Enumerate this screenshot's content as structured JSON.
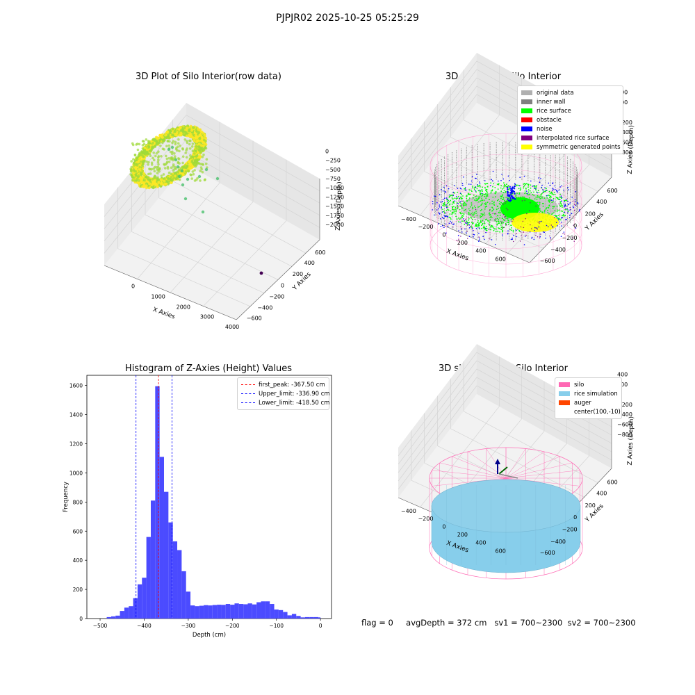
{
  "suptitle": "PJPJR02 2025-10-25 05:25:29",
  "status": {
    "flag": "flag = 0",
    "avgDepth": "avgDepth = 372 cm",
    "sv1": "sv1 = 700~2300",
    "sv2": "sv2 = 700~2300"
  },
  "chart_data": [
    {
      "type": "scatter",
      "title": "3D Plot of Silo Interior(row data)",
      "xlabel": "X Axies",
      "ylabel": "Y Axies",
      "zlabel": "Z Axies (Depth)",
      "x_ticks": [
        "0",
        "1000",
        "2000",
        "3000",
        "4000"
      ],
      "y_ticks": [
        "600",
        "400",
        "200",
        "0",
        "−200",
        "−400",
        "−600"
      ],
      "z_ticks": [
        "0",
        "−250",
        "−500",
        "−750",
        "−1000",
        "−1250",
        "−1500",
        "−1750",
        "−2000"
      ],
      "colormap": [
        "#fde725",
        "#a0da39",
        "#4ac16d",
        "#1fa187",
        "#440154"
      ]
    },
    {
      "type": "scatter",
      "title": "3D classify of Silo Interior",
      "xlabel": "X Axies",
      "ylabel": "Y Axies",
      "zlabel": "Z Axies (Depth)",
      "x_ticks": [
        "−400",
        "−200",
        "0",
        "200",
        "400",
        "600"
      ],
      "y_ticks": [
        "600",
        "400",
        "200",
        "0",
        "−200",
        "−400",
        "−600"
      ],
      "z_ticks": [
        "400",
        "200",
        "0",
        "−200",
        "−400",
        "−600",
        "−800"
      ],
      "legend": [
        {
          "label": "original data",
          "color": "#b0b0b0"
        },
        {
          "label": "inner wall",
          "color": "#808080"
        },
        {
          "label": "rice surface",
          "color": "#00ff00"
        },
        {
          "label": "obstacle",
          "color": "#ff0000"
        },
        {
          "label": "noise",
          "color": "#0000ff"
        },
        {
          "label": "interpolated rice surface",
          "color": "#800080"
        },
        {
          "label": "symmetric generated points",
          "color": "#ffff00"
        }
      ]
    },
    {
      "type": "bar",
      "title": "Histogram of Z-Axies (Height) Values",
      "xlabel": "Depth (cm)",
      "ylabel": "Frequency",
      "xlim": [
        -530,
        25
      ],
      "ylim": [
        0,
        1670
      ],
      "x_ticks": [
        -500,
        -400,
        -300,
        -200,
        -100,
        0
      ],
      "y_ticks": [
        0,
        200,
        400,
        600,
        800,
        1000,
        1200,
        1400,
        1600
      ],
      "bar_color": "#4b4bff",
      "bins": [
        [
          -485,
          -475,
          10
        ],
        [
          -475,
          -465,
          15
        ],
        [
          -465,
          -455,
          20
        ],
        [
          -455,
          -445,
          52
        ],
        [
          -445,
          -435,
          75
        ],
        [
          -435,
          -425,
          85
        ],
        [
          -425,
          -415,
          140
        ],
        [
          -415,
          -405,
          235
        ],
        [
          -405,
          -395,
          280
        ],
        [
          -395,
          -385,
          560
        ],
        [
          -385,
          -375,
          810
        ],
        [
          -375,
          -365,
          1595
        ],
        [
          -365,
          -355,
          1110
        ],
        [
          -355,
          -345,
          870
        ],
        [
          -345,
          -335,
          660
        ],
        [
          -335,
          -325,
          530
        ],
        [
          -325,
          -315,
          470
        ],
        [
          -315,
          -305,
          325
        ],
        [
          -305,
          -295,
          185
        ],
        [
          -295,
          -285,
          90
        ],
        [
          -285,
          -275,
          85
        ],
        [
          -275,
          -265,
          88
        ],
        [
          -265,
          -255,
          92
        ],
        [
          -255,
          -245,
          90
        ],
        [
          -245,
          -235,
          93
        ],
        [
          -235,
          -225,
          95
        ],
        [
          -225,
          -215,
          94
        ],
        [
          -215,
          -205,
          100
        ],
        [
          -205,
          -195,
          95
        ],
        [
          -195,
          -185,
          104
        ],
        [
          -185,
          -175,
          100
        ],
        [
          -175,
          -165,
          98
        ],
        [
          -165,
          -155,
          104
        ],
        [
          -155,
          -145,
          97
        ],
        [
          -145,
          -135,
          112
        ],
        [
          -135,
          -125,
          118
        ],
        [
          -125,
          -115,
          118
        ],
        [
          -115,
          -105,
          100
        ],
        [
          -105,
          -95,
          62
        ],
        [
          -95,
          -85,
          58
        ],
        [
          -85,
          -75,
          45
        ],
        [
          -75,
          -65,
          22
        ],
        [
          -65,
          -55,
          32
        ],
        [
          -55,
          -45,
          18
        ],
        [
          -45,
          -35,
          8
        ],
        [
          -35,
          -25,
          10
        ],
        [
          -25,
          -15,
          10
        ],
        [
          -15,
          -5,
          10
        ],
        [
          -5,
          0,
          8
        ]
      ],
      "lines": [
        {
          "label": "first_peak: -367.50 cm",
          "x": -367.5,
          "color": "#ff0000"
        },
        {
          "label": "Upper_limit: -336.90 cm",
          "x": -336.9,
          "color": "#0000ff"
        },
        {
          "label": "Lower_limit: -418.50 cm",
          "x": -418.5,
          "color": "#0000ff"
        }
      ]
    },
    {
      "type": "scatter",
      "title": "3D simulation of Silo Interior",
      "xlabel": "X Axies",
      "ylabel": "Y Axies",
      "zlabel": "Z Axies (Depth)",
      "x_ticks": [
        "−400",
        "−200",
        "0",
        "200",
        "400",
        "600"
      ],
      "y_ticks": [
        "600",
        "400",
        "200",
        "0",
        "−200",
        "−400",
        "−600"
      ],
      "z_ticks": [
        "400",
        "200",
        "0",
        "−200",
        "−400",
        "−600",
        "−800"
      ],
      "legend": [
        {
          "label": "silo",
          "color": "#ff69b4"
        },
        {
          "label": "rice simulation",
          "color": "#87ceeb"
        },
        {
          "label": "auger",
          "color": "#ff4500"
        },
        {
          "label": "center(100,-10)",
          "color": ""
        }
      ]
    }
  ]
}
